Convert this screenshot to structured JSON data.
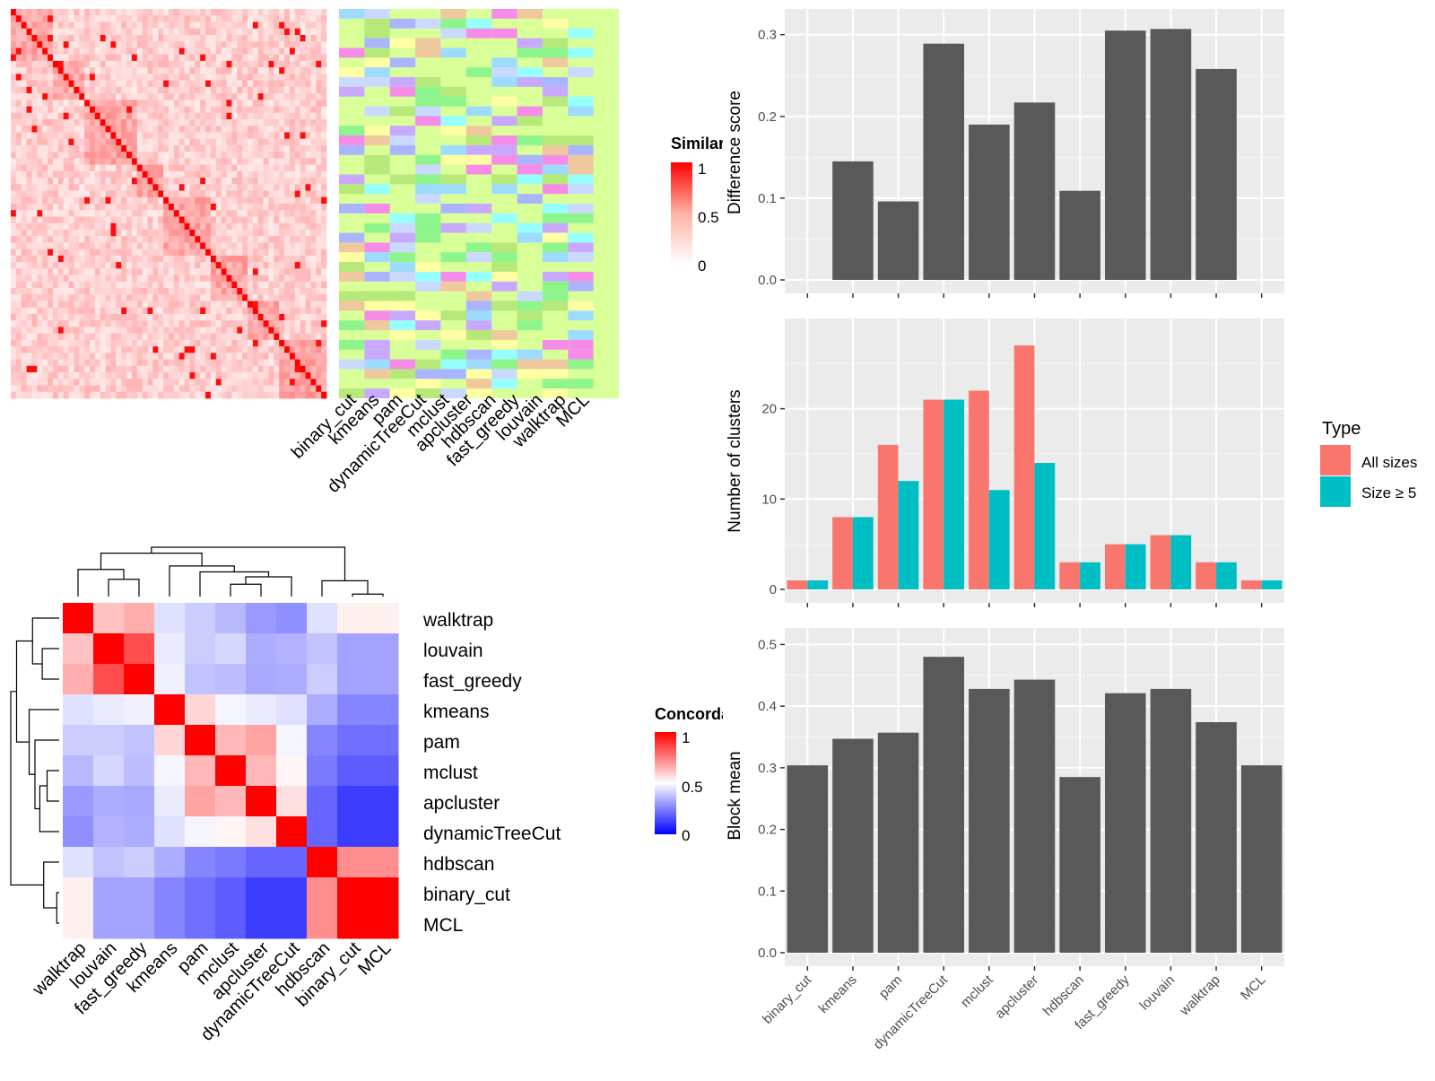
{
  "colors": {
    "panel_bg": "#EBEBEB",
    "grid": "#FFFFFF",
    "bar": "#595959",
    "all_sizes": "#F8766D",
    "size_ge_5": "#00BFC4",
    "heat_high": "#FF0000",
    "heat_mid": "#FFFFFF",
    "heat_low": "#0000FF",
    "cluster_bg": "#D9FF99"
  },
  "similarity_heatmap": {
    "legend_title": "Similarity",
    "legend_labels": [
      "1",
      "0.5",
      "0"
    ],
    "method_labels": [
      "binary_cut",
      "kmeans",
      "pam",
      "dynamicTreeCut",
      "mclust",
      "apcluster",
      "hdbscan",
      "fast_greedy",
      "louvain",
      "walktrap",
      "MCL"
    ]
  },
  "concordance_heatmap": {
    "legend_title": "Concordance",
    "legend_labels": [
      "1",
      "0.5",
      "0"
    ],
    "row_labels": [
      "walktrap",
      "louvain",
      "fast_greedy",
      "kmeans",
      "pam",
      "mclust",
      "apcluster",
      "dynamicTreeCut",
      "hdbscan",
      "binary_cut",
      "MCL"
    ],
    "col_labels": [
      "walktrap",
      "louvain",
      "fast_greedy",
      "kmeans",
      "pam",
      "mclust",
      "apcluster",
      "dynamicTreeCut",
      "hdbscan",
      "binary_cut",
      "MCL"
    ]
  },
  "chart_data": [
    {
      "type": "bar",
      "categories": [
        "binary_cut",
        "kmeans",
        "pam",
        "dynamicTreeCut",
        "mclust",
        "apcluster",
        "hdbscan",
        "fast_greedy",
        "louvain",
        "walktrap",
        "MCL"
      ],
      "values": [
        0,
        0.145,
        0.096,
        0.289,
        0.19,
        0.217,
        0.109,
        0.305,
        0.307,
        0.258,
        0
      ],
      "ylabel": "Difference score",
      "ylim": [
        0,
        0.315
      ],
      "yticks": [
        0.0,
        0.1,
        0.2,
        0.3
      ],
      "ytick_labels": [
        "0.0",
        "0.1",
        "0.2",
        "0.3"
      ],
      "grid": true
    },
    {
      "type": "bar",
      "categories": [
        "binary_cut",
        "kmeans",
        "pam",
        "dynamicTreeCut",
        "mclust",
        "apcluster",
        "hdbscan",
        "fast_greedy",
        "louvain",
        "walktrap",
        "MCL"
      ],
      "series": [
        {
          "name": "All sizes",
          "values": [
            1,
            8,
            16,
            21,
            22,
            27,
            3,
            5,
            6,
            3,
            1
          ]
        },
        {
          "name": "Size ≥ 5",
          "values": [
            1,
            8,
            12,
            21,
            11,
            14,
            3,
            5,
            6,
            3,
            1
          ]
        }
      ],
      "ylabel": "Number of clusters",
      "ylim": [
        0,
        28.5
      ],
      "yticks": [
        0,
        10,
        20
      ],
      "ytick_labels": [
        "0",
        "10",
        "20"
      ],
      "legend_title": "Type",
      "legend_position": "right",
      "grid": true
    },
    {
      "type": "bar",
      "categories": [
        "binary_cut",
        "kmeans",
        "pam",
        "dynamicTreeCut",
        "mclust",
        "apcluster",
        "hdbscan",
        "fast_greedy",
        "louvain",
        "walktrap",
        "MCL"
      ],
      "values": [
        0.304,
        0.347,
        0.357,
        0.48,
        0.428,
        0.443,
        0.285,
        0.421,
        0.428,
        0.374,
        0.304
      ],
      "ylabel": "Block mean",
      "ylim": [
        0,
        0.505
      ],
      "yticks": [
        0.0,
        0.1,
        0.2,
        0.3,
        0.4,
        0.5
      ],
      "ytick_labels": [
        "0.0",
        "0.1",
        "0.2",
        "0.3",
        "0.4",
        "0.5"
      ],
      "grid": true
    },
    {
      "type": "heatmap",
      "rows": [
        "walktrap",
        "louvain",
        "fast_greedy",
        "kmeans",
        "pam",
        "mclust",
        "apcluster",
        "dynamicTreeCut",
        "hdbscan",
        "binary_cut",
        "MCL"
      ],
      "cols": [
        "walktrap",
        "louvain",
        "fast_greedy",
        "kmeans",
        "pam",
        "mclust",
        "apcluster",
        "dynamicTreeCut",
        "hdbscan",
        "binary_cut",
        "MCL"
      ],
      "values": [
        [
          1.0,
          0.62,
          0.66,
          0.44,
          0.4,
          0.36,
          0.3,
          0.28,
          0.44,
          0.53,
          0.53
        ],
        [
          0.62,
          1.0,
          0.85,
          0.46,
          0.4,
          0.42,
          0.34,
          0.35,
          0.38,
          0.32,
          0.32
        ],
        [
          0.66,
          0.85,
          1.0,
          0.47,
          0.38,
          0.37,
          0.33,
          0.34,
          0.4,
          0.32,
          0.32
        ],
        [
          0.44,
          0.46,
          0.47,
          1.0,
          0.58,
          0.48,
          0.46,
          0.44,
          0.34,
          0.26,
          0.26
        ],
        [
          0.4,
          0.4,
          0.38,
          0.58,
          1.0,
          0.64,
          0.68,
          0.48,
          0.26,
          0.22,
          0.22
        ],
        [
          0.36,
          0.42,
          0.37,
          0.48,
          0.64,
          1.0,
          0.64,
          0.52,
          0.24,
          0.18,
          0.18
        ],
        [
          0.3,
          0.34,
          0.33,
          0.46,
          0.68,
          0.64,
          1.0,
          0.56,
          0.2,
          0.12,
          0.12
        ],
        [
          0.28,
          0.35,
          0.34,
          0.44,
          0.48,
          0.52,
          0.56,
          1.0,
          0.2,
          0.12,
          0.12
        ],
        [
          0.44,
          0.38,
          0.4,
          0.34,
          0.26,
          0.24,
          0.2,
          0.2,
          1.0,
          0.72,
          0.72
        ],
        [
          0.53,
          0.32,
          0.32,
          0.26,
          0.22,
          0.18,
          0.12,
          0.12,
          0.72,
          1.0,
          1.0
        ],
        [
          0.53,
          0.32,
          0.32,
          0.26,
          0.22,
          0.18,
          0.12,
          0.12,
          0.72,
          1.0,
          1.0
        ]
      ],
      "color_range": [
        0,
        1
      ]
    }
  ]
}
